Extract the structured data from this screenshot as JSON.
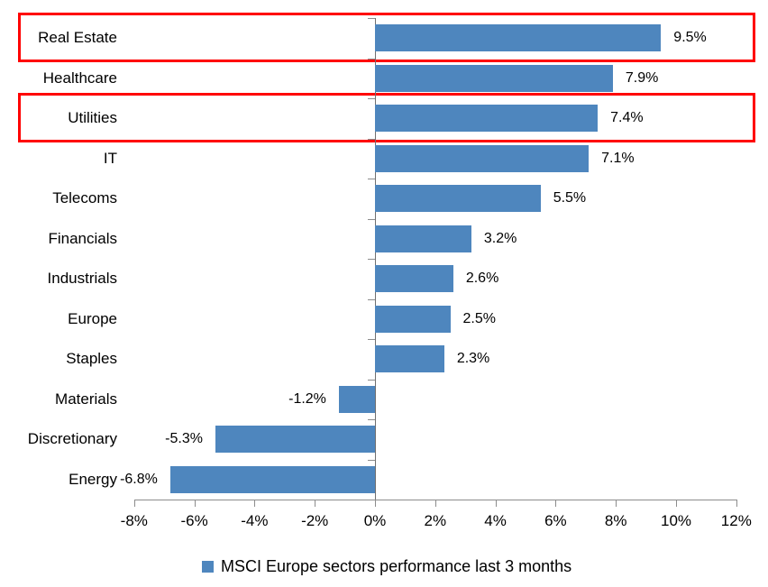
{
  "chart_data": {
    "type": "bar",
    "orientation": "horizontal",
    "title": "",
    "categories": [
      "Real Estate",
      "Healthcare",
      "Utilities",
      "IT",
      "Telecoms",
      "Financials",
      "Industrials",
      "Europe",
      "Staples",
      "Materials",
      "Discretionary",
      "Energy"
    ],
    "values": [
      9.5,
      7.9,
      7.4,
      7.1,
      5.5,
      3.2,
      2.6,
      2.5,
      2.3,
      -1.2,
      -5.3,
      -6.8
    ],
    "value_labels": [
      "9.5%",
      "7.9%",
      "7.4%",
      "7.1%",
      "5.5%",
      "3.2%",
      "2.6%",
      "2.5%",
      "2.3%",
      "-1.2%",
      "-5.3%",
      "-6.8%"
    ],
    "highlighted_categories": [
      "Real Estate",
      "Utilities"
    ],
    "x_ticks": [
      {
        "v": -8,
        "label": "-8%"
      },
      {
        "v": -6,
        "label": "-6%"
      },
      {
        "v": -4,
        "label": "-4%"
      },
      {
        "v": -2,
        "label": "-2%"
      },
      {
        "v": 0,
        "label": "0%"
      },
      {
        "v": 2,
        "label": "2%"
      },
      {
        "v": 4,
        "label": "4%"
      },
      {
        "v": 6,
        "label": "6%"
      },
      {
        "v": 8,
        "label": "8%"
      },
      {
        "v": 10,
        "label": "10%"
      },
      {
        "v": 12,
        "label": "12%"
      }
    ],
    "xlim": [
      -8,
      12
    ],
    "grid": false,
    "legend": "MSCI Europe sectors performance last 3 months",
    "legend_position": "bottom",
    "colors": {
      "bar": "#4E86BE",
      "highlight": "#FF0000",
      "axis": "#8C8C8C",
      "zero_axis": "#707070",
      "text": "#000000"
    }
  }
}
